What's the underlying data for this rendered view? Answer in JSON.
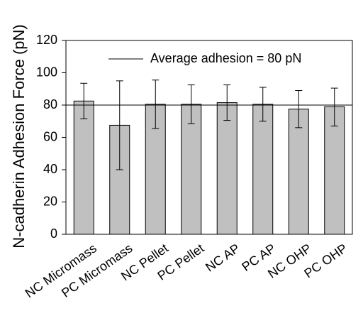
{
  "chart_data": {
    "type": "bar",
    "title": "",
    "xlabel": "",
    "ylabel": "N-cadherin Adhesion Force (pN)",
    "ylim": [
      0,
      120
    ],
    "yticks": [
      0,
      20,
      40,
      60,
      80,
      100,
      120
    ],
    "categories": [
      "NC Micromass",
      "PC Micromass",
      "NC Pellet",
      "PC Pellet",
      "NC AP",
      "PC AP",
      "NC OHP",
      "PC OHP"
    ],
    "values": [
      82.5,
      67.5,
      80.5,
      80.5,
      81.5,
      80.5,
      77.5,
      79
    ],
    "error_lower": [
      71.5,
      40,
      65.5,
      68.5,
      70.5,
      70,
      66,
      67
    ],
    "error_upper": [
      93.5,
      95,
      95.5,
      92.5,
      92.5,
      91,
      89,
      90.5
    ],
    "reference_line": {
      "value": 80,
      "label": "Average adhesion = 80 pN"
    },
    "legend_position": "top-right",
    "grid": false,
    "colors": {
      "bar_fill": "#c0c0c0",
      "bar_stroke": "#000000",
      "axis": "#000000"
    }
  }
}
